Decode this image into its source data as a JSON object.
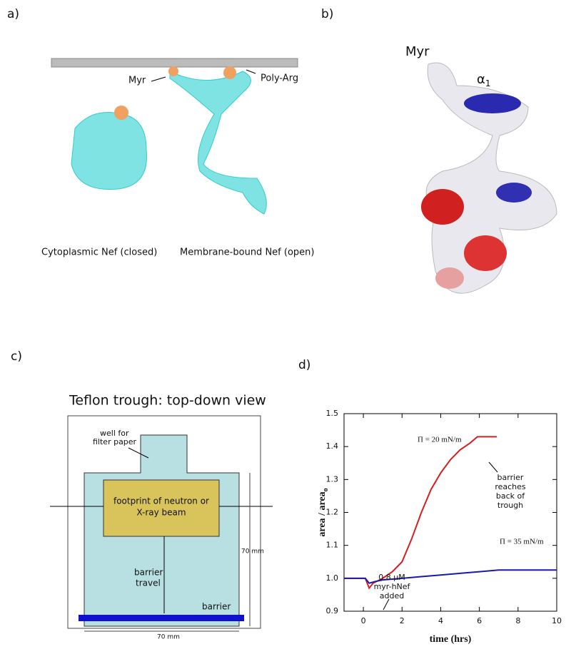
{
  "panels": {
    "a": {
      "label": "a)",
      "myr": "Myr",
      "poly_arg": "Poly-Arg",
      "closed": "Cytoplasmic Nef  (closed)",
      "open": "Membrane-bound Nef  (open)"
    },
    "b": {
      "label": "b)",
      "myr": "Myr",
      "alpha": "α",
      "alpha_sub": "1"
    },
    "c": {
      "label": "c)",
      "title": "Teflon trough:  top-down view",
      "well": [
        "well for",
        "filter paper"
      ],
      "footprint": [
        "footprint of neutron or",
        "X-ray beam"
      ],
      "barrier_travel": [
        "barrier",
        "travel"
      ],
      "barrier": "barrier",
      "dim_v": "70 mm",
      "dim_h": "70 mm"
    },
    "d": {
      "label": "d)"
    }
  },
  "chart_data": {
    "type": "line",
    "xlabel": "time  (hrs)",
    "ylabel": "area / area",
    "ylabel_sub": "o",
    "xlim": [
      -1,
      10
    ],
    "ylim": [
      0.9,
      1.5
    ],
    "xticks": [
      0,
      2,
      4,
      6,
      8,
      10
    ],
    "yticks": [
      0.9,
      {
        "value": 1,
        "label": "1.0"
      },
      1.1,
      1.2,
      1.3,
      1.4,
      1.5
    ],
    "series": [
      {
        "name": "Π = 20 mN/m",
        "color": "#d42020",
        "x": [
          -1,
          0.1,
          0.3,
          0.5,
          1,
          1.5,
          2,
          2.5,
          3,
          3.5,
          4,
          4.5,
          5,
          5.5,
          5.9,
          6,
          6.9
        ],
        "values": [
          1.0,
          1.0,
          0.97,
          0.985,
          1.0,
          1.02,
          1.05,
          1.12,
          1.2,
          1.27,
          1.32,
          1.36,
          1.39,
          1.41,
          1.43,
          1.43,
          1.43
        ]
      },
      {
        "name": "Π = 35 mN/m",
        "color": "#1a1aa8",
        "x": [
          -1,
          0.1,
          0.3,
          0.6,
          1,
          2,
          3,
          4,
          5,
          6,
          7,
          8,
          10
        ],
        "values": [
          1.0,
          1.0,
          0.985,
          0.99,
          0.995,
          1.0,
          1.005,
          1.01,
          1.015,
          1.02,
          1.025,
          1.025,
          1.025
        ]
      }
    ],
    "annotations": [
      [
        "0.8 μM",
        "myr-hNef",
        "added"
      ],
      [
        "barrier",
        "reaches",
        "back of",
        "trough"
      ]
    ]
  }
}
